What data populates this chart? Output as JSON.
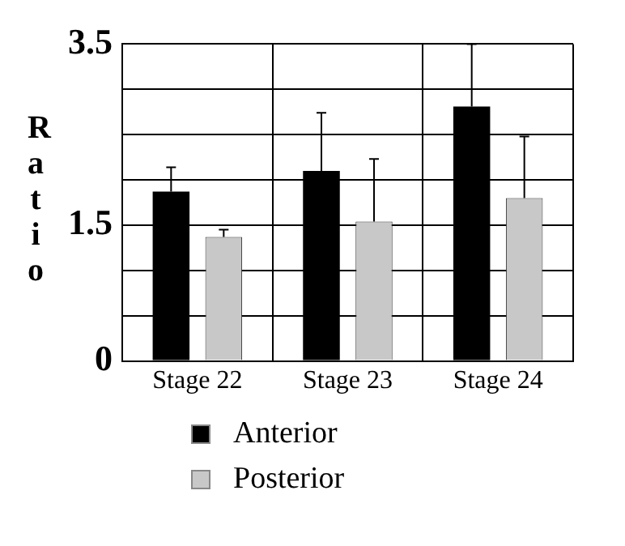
{
  "chart_data": {
    "type": "bar",
    "ylabel": "Ratio",
    "categories": [
      "Stage 22",
      "Stage 23",
      "Stage 24"
    ],
    "series": [
      {
        "name": "Anterior",
        "color": "#000000",
        "values": [
          1.87,
          2.1,
          2.81
        ],
        "errors": [
          [
            1.87,
            2.14
          ],
          [
            2.1,
            2.74
          ],
          [
            2.81,
            3.5
          ]
        ]
      },
      {
        "name": "Posterior",
        "color": "#c8c8c8",
        "values": [
          1.37,
          1.54,
          1.8
        ],
        "errors": [
          [
            1.37,
            1.45
          ],
          [
            1.54,
            2.23
          ],
          [
            1.8,
            2.48
          ]
        ]
      }
    ],
    "ylim": [
      0,
      3.5
    ],
    "yticks": [
      0,
      {
        "value": 0.5,
        "label": null
      },
      {
        "value": 1,
        "label": null
      },
      1.5,
      {
        "value": 2,
        "label": null
      },
      {
        "value": 2.5,
        "label": null
      },
      {
        "value": 3,
        "label": null
      },
      3.5
    ],
    "grid": true,
    "legend": "bottom left"
  }
}
